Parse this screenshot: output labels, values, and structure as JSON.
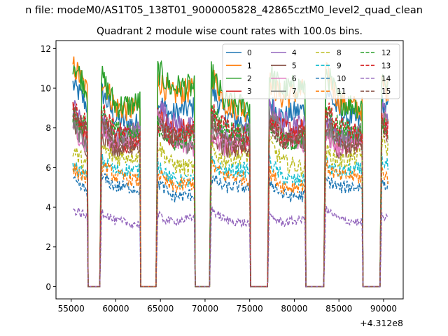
{
  "chart_data": {
    "type": "line",
    "suptitle": "n file: modeM0/AS1T05_138T01_9000005828_42865cztM0_level2_quad_clean",
    "title": "Quadrant 2 module wise count rates with 100.0s bins.",
    "xlabel": "",
    "ylabel": "",
    "x_offset_label": "+4.312e8",
    "x_offset": 431200000,
    "xlim": [
      53300,
      92200
    ],
    "ylim": [
      -0.62,
      12.4
    ],
    "xticks": [
      55000,
      60000,
      65000,
      70000,
      75000,
      80000,
      85000,
      90000
    ],
    "yticks": [
      0,
      2,
      4,
      6,
      8,
      10,
      12
    ],
    "grid": false,
    "legend": {
      "placement": "upper-right",
      "columns": 4
    },
    "time_range": [
      55200,
      90500
    ],
    "bin_size_s": 100,
    "gaps": [
      [
        56900,
        58200
      ],
      [
        62800,
        64500
      ],
      [
        68900,
        70500
      ],
      [
        75100,
        77000
      ],
      [
        81300,
        83300
      ],
      [
        87700,
        89600
      ]
    ],
    "series": [
      {
        "name": "0",
        "color": "#1f77b4",
        "dash": "solid",
        "level": 8.6
      },
      {
        "name": "1",
        "color": "#ff7f0e",
        "dash": "solid",
        "level": 9.4
      },
      {
        "name": "2",
        "color": "#2ca02c",
        "dash": "solid",
        "level": 9.6
      },
      {
        "name": "3",
        "color": "#d62728",
        "dash": "solid",
        "level": 7.6
      },
      {
        "name": "4",
        "color": "#9467bd",
        "dash": "solid",
        "level": 7.9
      },
      {
        "name": "5",
        "color": "#8c564b",
        "dash": "solid",
        "level": 7.2
      },
      {
        "name": "6",
        "color": "#e377c2",
        "dash": "solid",
        "level": 7.3
      },
      {
        "name": "7",
        "color": "#7f7f7f",
        "dash": "solid",
        "level": 7.5
      },
      {
        "name": "8",
        "color": "#bcbd22",
        "dash": "dashed",
        "level": 6.3
      },
      {
        "name": "9",
        "color": "#17becf",
        "dash": "dashed",
        "level": 5.6
      },
      {
        "name": "10",
        "color": "#1f77b4",
        "dash": "dashed",
        "level": 4.8
      },
      {
        "name": "11",
        "color": "#ff7f0e",
        "dash": "dashed",
        "level": 5.3
      },
      {
        "name": "12",
        "color": "#2ca02c",
        "dash": "dashed",
        "level": 7.6
      },
      {
        "name": "13",
        "color": "#d62728",
        "dash": "dashed",
        "level": 7.7
      },
      {
        "name": "14",
        "color": "#9467bd",
        "dash": "dashed",
        "level": 3.3
      },
      {
        "name": "15",
        "color": "#8c564b",
        "dash": "dashed",
        "level": 7.4
      }
    ]
  }
}
